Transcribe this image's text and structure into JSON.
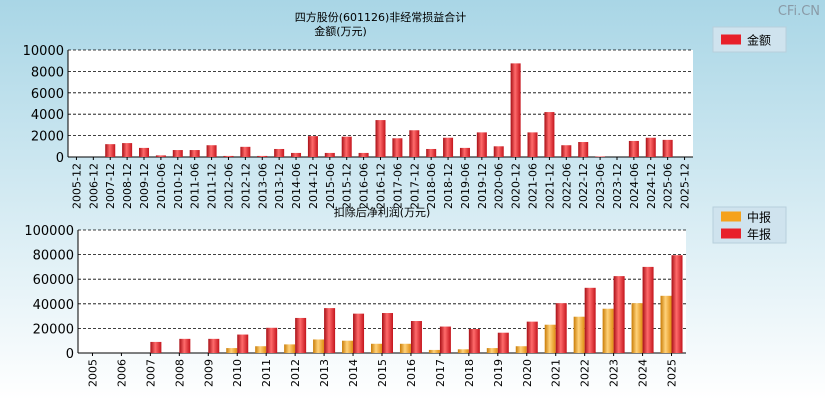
{
  "watermark": "CFi.CN",
  "chart_data": [
    {
      "type": "bar",
      "title": "四方股份(601126)非经常损益合计",
      "ylabel": "金额(万元)",
      "ylim": [
        0,
        10000
      ],
      "yticks": [
        "0",
        "2000",
        "4000",
        "6000",
        "8000",
        "10000"
      ],
      "grid": true,
      "legend_position": "top-right",
      "colors": {
        "bar": "#e8202a",
        "bar_dark": "#a80f16",
        "bar_light": "#ff8a8a"
      },
      "categories": [
        "2005-12",
        "2006-12",
        "2007-12",
        "2008-12",
        "2009-12",
        "2010-06",
        "2010-12",
        "2011-06",
        "2011-12",
        "2012-06",
        "2012-12",
        "2013-06",
        "2013-12",
        "2014-06",
        "2014-12",
        "2015-06",
        "2015-12",
        "2016-06",
        "2016-12",
        "2017-06",
        "2017-12",
        "2018-06",
        "2018-12",
        "2019-06",
        "2019-12",
        "2020-06",
        "2020-12",
        "2021-06",
        "2021-12",
        "2022-06",
        "2022-12",
        "2023-06",
        "2023-12",
        "2024-06",
        "2024-12",
        "2025-06",
        "2025-12"
      ],
      "series": [
        {
          "name": "金额",
          "values": [
            0,
            0,
            1200,
            1300,
            850,
            150,
            650,
            650,
            1100,
            100,
            950,
            100,
            750,
            380,
            1950,
            380,
            1900,
            380,
            3450,
            1750,
            2500,
            750,
            1800,
            850,
            2300,
            1000,
            8750,
            2300,
            4200,
            1100,
            1400,
            50,
            0,
            1500,
            1800,
            1600,
            0
          ]
        }
      ]
    },
    {
      "type": "bar",
      "title": "扣除后净利润(万元)",
      "ylim": [
        0,
        100000
      ],
      "yticks": [
        "0",
        "20000",
        "40000",
        "60000",
        "80000",
        "100000"
      ],
      "grid": true,
      "legend_position": "top-right",
      "colors": {
        "中报": "#f5a21c",
        "年报": "#e8202a"
      },
      "categories": [
        "2005",
        "2006",
        "2007",
        "2008",
        "2009",
        "2010",
        "2011",
        "2012",
        "2013",
        "2014",
        "2015",
        "2016",
        "2017",
        "2018",
        "2019",
        "2020",
        "2021",
        "2022",
        "2023",
        "2024",
        "2025"
      ],
      "series": [
        {
          "name": "中报",
          "values": [
            0,
            0,
            0,
            0,
            0,
            4000,
            5500,
            7000,
            11000,
            10000,
            7500,
            7500,
            2500,
            3000,
            4000,
            5500,
            23000,
            29500,
            36000,
            40500,
            46500
          ]
        },
        {
          "name": "年报",
          "values": [
            0,
            0,
            9000,
            11500,
            11500,
            15000,
            20500,
            28500,
            36500,
            32000,
            32500,
            26000,
            21500,
            19500,
            16500,
            25500,
            40500,
            53000,
            62500,
            70000,
            79500
          ]
        }
      ]
    }
  ]
}
